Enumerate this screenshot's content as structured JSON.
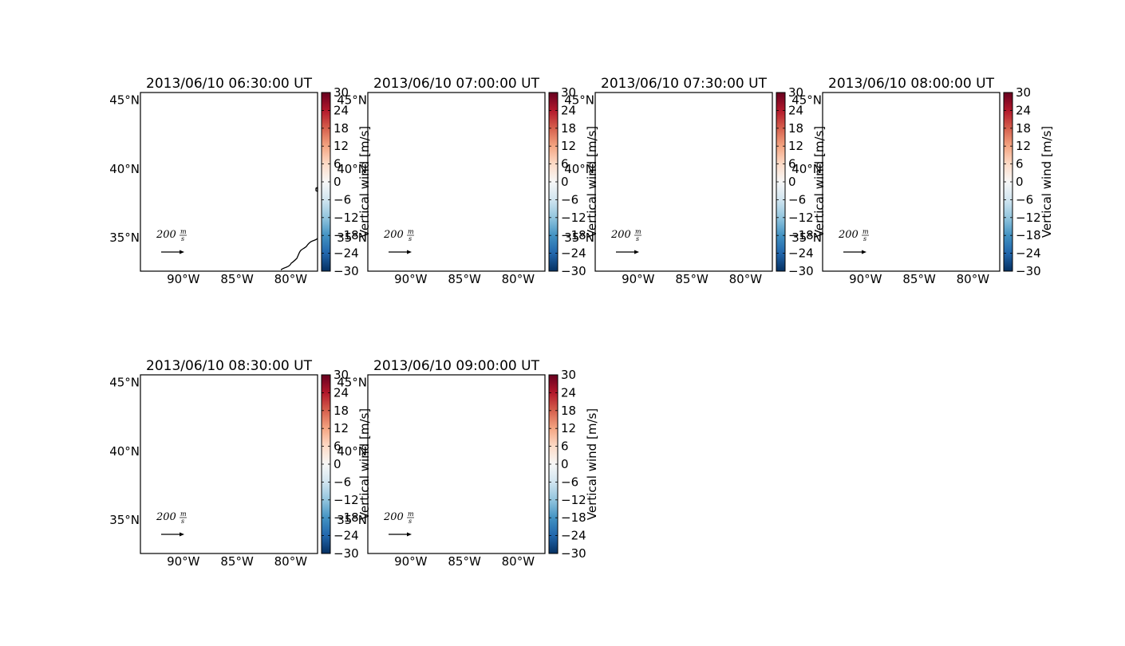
{
  "chart_data": {
    "type": "map_panels",
    "xlabel": "",
    "ylabel": "",
    "xlim_deg": [
      -94,
      -77.5
    ],
    "ylim_deg": [
      32.5,
      45.5
    ],
    "lat_ticks": [
      45,
      40,
      35
    ],
    "lon_ticks": [
      -90,
      -85,
      -80
    ],
    "lat_tick_labels": [
      "45°N",
      "40°N",
      "35°N"
    ],
    "lon_tick_labels": [
      "90°W",
      "85°W",
      "80°W"
    ],
    "colorbar": {
      "label": "Vertical wind [m/s]",
      "range": [
        -30,
        30
      ],
      "ticks": [
        30,
        24,
        18,
        12,
        6,
        0,
        -6,
        -12,
        -18,
        -24,
        -30
      ],
      "tick_labels": [
        "30",
        "24",
        "18",
        "12",
        "6",
        "0",
        "−6",
        "−12",
        "−18",
        "−24",
        "−30"
      ],
      "colormap": "RdBu_r",
      "colors": [
        "#053061",
        "#2166ac",
        "#4393c3",
        "#92c5de",
        "#d1e5f0",
        "#f7f7f7",
        "#fddbc7",
        "#f4a582",
        "#d6604d",
        "#b2182b",
        "#67001f"
      ]
    },
    "quiver_key": {
      "value": "200",
      "unit_numerator": "m",
      "unit_denominator": "s"
    },
    "grid": false,
    "panels": [
      {
        "title": "2013/06/10 06:30:00 UT"
      },
      {
        "title": "2013/06/10 07:00:00 UT"
      },
      {
        "title": "2013/06/10 07:30:00 UT"
      },
      {
        "title": "2013/06/10 08:00:00 UT"
      },
      {
        "title": "2013/06/10 08:30:00 UT"
      },
      {
        "title": "2013/06/10 09:00:00 UT"
      }
    ]
  }
}
